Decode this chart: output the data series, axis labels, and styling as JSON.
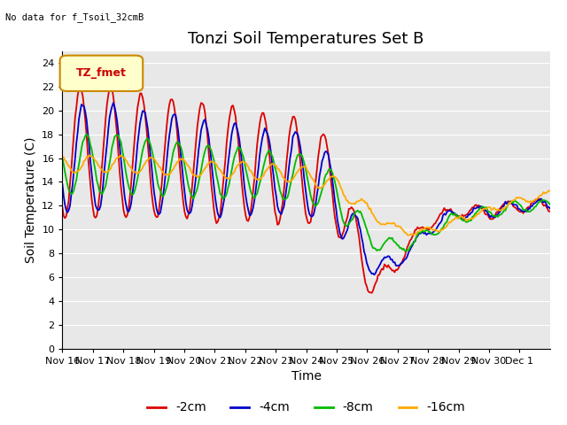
{
  "title": "Tonzi Soil Temperatures Set B",
  "xlabel": "Time",
  "ylabel": "Soil Temperature (C)",
  "no_data_text": "No data for f_Tsoil_32cmB",
  "legend_label_text": "TZ_fmet",
  "ylim": [
    0,
    25
  ],
  "yticks": [
    0,
    2,
    4,
    6,
    8,
    10,
    12,
    14,
    16,
    18,
    20,
    22,
    24
  ],
  "bg_color": "#e8e8e8",
  "fig_color": "#ffffff",
  "series_colors": [
    "#dd0000",
    "#0000cc",
    "#00bb00",
    "#ffaa00"
  ],
  "series_labels": [
    "-2cm",
    "-4cm",
    "-8cm",
    "-16cm"
  ],
  "title_fontsize": 13,
  "axis_label_fontsize": 10,
  "tick_fontsize": 8,
  "legend_fontsize": 10,
  "lw": 1.3
}
